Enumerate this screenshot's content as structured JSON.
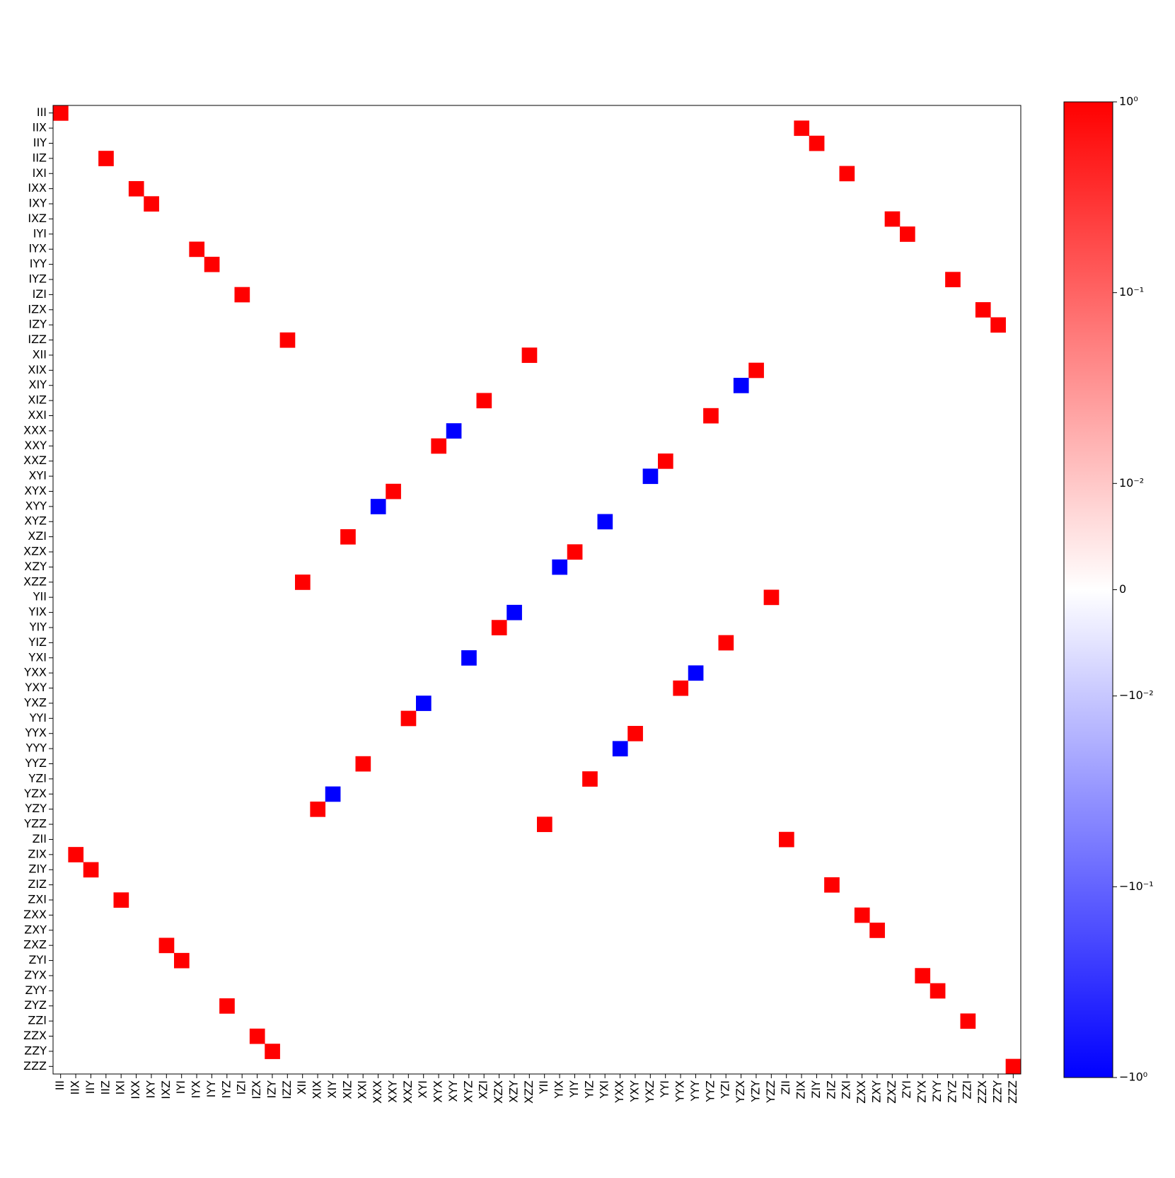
{
  "chart_data": {
    "type": "heatmap",
    "x": [
      "III",
      "IIX",
      "IIY",
      "IIZ",
      "IXI",
      "IXX",
      "IXY",
      "IXZ",
      "IYI",
      "IYX",
      "IYY",
      "IYZ",
      "IZI",
      "IZX",
      "IZY",
      "IZZ",
      "XII",
      "XIX",
      "XIY",
      "XIZ",
      "XXI",
      "XXX",
      "XXY",
      "XXZ",
      "XYI",
      "XYX",
      "XYY",
      "XYZ",
      "XZI",
      "XZX",
      "XZY",
      "XZZ",
      "YII",
      "YIX",
      "YIY",
      "YIZ",
      "YXI",
      "YXX",
      "YXY",
      "YXZ",
      "YYI",
      "YYX",
      "YYY",
      "YYZ",
      "YZI",
      "YZX",
      "YZY",
      "YZZ",
      "ZII",
      "ZIX",
      "ZIY",
      "ZIZ",
      "ZXI",
      "ZXX",
      "ZXY",
      "ZXZ",
      "ZYI",
      "ZYX",
      "ZYY",
      "ZYZ",
      "ZZI",
      "ZZX",
      "ZZY",
      "ZZZ"
    ],
    "y": [
      "III",
      "IIX",
      "IIY",
      "IIZ",
      "IXI",
      "IXX",
      "IXY",
      "IXZ",
      "IYI",
      "IYX",
      "IYY",
      "IYZ",
      "IZI",
      "IZX",
      "IZY",
      "IZZ",
      "XII",
      "XIX",
      "XIY",
      "XIZ",
      "XXI",
      "XXX",
      "XXY",
      "XXZ",
      "XYI",
      "XYX",
      "XYY",
      "XYZ",
      "XZI",
      "XZX",
      "XZY",
      "XZZ",
      "YII",
      "YIX",
      "YIY",
      "YIZ",
      "YXI",
      "YXX",
      "YXY",
      "YXZ",
      "YYI",
      "YYX",
      "YYY",
      "YYZ",
      "YZI",
      "YZX",
      "YZY",
      "YZZ",
      "ZII",
      "ZIX",
      "ZIY",
      "ZIZ",
      "ZXI",
      "ZXX",
      "ZXY",
      "ZXZ",
      "ZYI",
      "ZYX",
      "ZYY",
      "ZYZ",
      "ZZI",
      "ZZX",
      "ZZY",
      "ZZZ"
    ],
    "cells": [
      {
        "row": "III",
        "col": "III",
        "value": 1
      },
      {
        "row": "IIX",
        "col": "ZIX",
        "value": 1
      },
      {
        "row": "IIY",
        "col": "ZIY",
        "value": 1
      },
      {
        "row": "IIZ",
        "col": "IIZ",
        "value": 1
      },
      {
        "row": "IXI",
        "col": "ZXI",
        "value": 1
      },
      {
        "row": "IXX",
        "col": "IXX",
        "value": 1
      },
      {
        "row": "IXY",
        "col": "IXY",
        "value": 1
      },
      {
        "row": "IXZ",
        "col": "ZXZ",
        "value": 1
      },
      {
        "row": "IYI",
        "col": "ZYI",
        "value": 1
      },
      {
        "row": "IYX",
        "col": "IYX",
        "value": 1
      },
      {
        "row": "IYY",
        "col": "IYY",
        "value": 1
      },
      {
        "row": "IYZ",
        "col": "ZYZ",
        "value": 1
      },
      {
        "row": "IZI",
        "col": "IZI",
        "value": 1
      },
      {
        "row": "IZX",
        "col": "ZZX",
        "value": 1
      },
      {
        "row": "IZY",
        "col": "ZZY",
        "value": 1
      },
      {
        "row": "IZZ",
        "col": "IZZ",
        "value": 1
      },
      {
        "row": "XII",
        "col": "XZZ",
        "value": 1
      },
      {
        "row": "XIX",
        "col": "YZY",
        "value": 1
      },
      {
        "row": "XIY",
        "col": "YZX",
        "value": -1
      },
      {
        "row": "XIZ",
        "col": "XZI",
        "value": 1
      },
      {
        "row": "XXI",
        "col": "YYZ",
        "value": 1
      },
      {
        "row": "XXX",
        "col": "XYY",
        "value": -1
      },
      {
        "row": "XXY",
        "col": "XYX",
        "value": 1
      },
      {
        "row": "XXZ",
        "col": "YYI",
        "value": 1
      },
      {
        "row": "XYI",
        "col": "YXZ",
        "value": -1
      },
      {
        "row": "XYX",
        "col": "XXY",
        "value": 1
      },
      {
        "row": "XYY",
        "col": "XXX",
        "value": -1
      },
      {
        "row": "XYZ",
        "col": "YXI",
        "value": -1
      },
      {
        "row": "XZI",
        "col": "XIZ",
        "value": 1
      },
      {
        "row": "XZX",
        "col": "YIY",
        "value": 1
      },
      {
        "row": "XZY",
        "col": "YIX",
        "value": -1
      },
      {
        "row": "XZZ",
        "col": "XII",
        "value": 1
      },
      {
        "row": "YII",
        "col": "YZZ",
        "value": 1
      },
      {
        "row": "YIX",
        "col": "XZY",
        "value": -1
      },
      {
        "row": "YIY",
        "col": "XZX",
        "value": 1
      },
      {
        "row": "YIZ",
        "col": "YZI",
        "value": 1
      },
      {
        "row": "YXI",
        "col": "XYZ",
        "value": -1
      },
      {
        "row": "YXX",
        "col": "YYY",
        "value": -1
      },
      {
        "row": "YXY",
        "col": "YYX",
        "value": 1
      },
      {
        "row": "YXZ",
        "col": "XYI",
        "value": -1
      },
      {
        "row": "YYI",
        "col": "XXZ",
        "value": 1
      },
      {
        "row": "YYX",
        "col": "YXY",
        "value": 1
      },
      {
        "row": "YYY",
        "col": "YXX",
        "value": -1
      },
      {
        "row": "YYZ",
        "col": "XXI",
        "value": 1
      },
      {
        "row": "YZI",
        "col": "YIZ",
        "value": 1
      },
      {
        "row": "YZX",
        "col": "XIY",
        "value": -1
      },
      {
        "row": "YZY",
        "col": "XIX",
        "value": 1
      },
      {
        "row": "YZZ",
        "col": "YII",
        "value": 1
      },
      {
        "row": "ZII",
        "col": "ZII",
        "value": 1
      },
      {
        "row": "ZIX",
        "col": "IIX",
        "value": 1
      },
      {
        "row": "ZIY",
        "col": "IIY",
        "value": 1
      },
      {
        "row": "ZIZ",
        "col": "ZIZ",
        "value": 1
      },
      {
        "row": "ZXI",
        "col": "IXI",
        "value": 1
      },
      {
        "row": "ZXX",
        "col": "ZXX",
        "value": 1
      },
      {
        "row": "ZXY",
        "col": "ZXY",
        "value": 1
      },
      {
        "row": "ZXZ",
        "col": "IXZ",
        "value": 1
      },
      {
        "row": "ZYI",
        "col": "IYI",
        "value": 1
      },
      {
        "row": "ZYX",
        "col": "ZYX",
        "value": 1
      },
      {
        "row": "ZYY",
        "col": "ZYY",
        "value": 1
      },
      {
        "row": "ZYZ",
        "col": "IYZ",
        "value": 1
      },
      {
        "row": "ZZI",
        "col": "ZZI",
        "value": 1
      },
      {
        "row": "ZZX",
        "col": "IZX",
        "value": 1
      },
      {
        "row": "ZZY",
        "col": "IZY",
        "value": 1
      },
      {
        "row": "ZZZ",
        "col": "ZZZ",
        "value": 1
      }
    ],
    "colormap": [
      "#0000ff",
      "#ffffff",
      "#ff0000"
    ],
    "clim": [
      -1,
      1
    ],
    "colorbar_ticks": [
      {
        "value": 1,
        "label": "10⁰"
      },
      {
        "value": 0.1,
        "label": "10⁻¹"
      },
      {
        "value": 0.01,
        "label": "10⁻²"
      },
      0,
      {
        "value": -0.01,
        "label": "−10⁻²"
      },
      {
        "value": -0.1,
        "label": "−10⁻¹"
      },
      {
        "value": -1,
        "label": "−10⁰"
      }
    ]
  }
}
